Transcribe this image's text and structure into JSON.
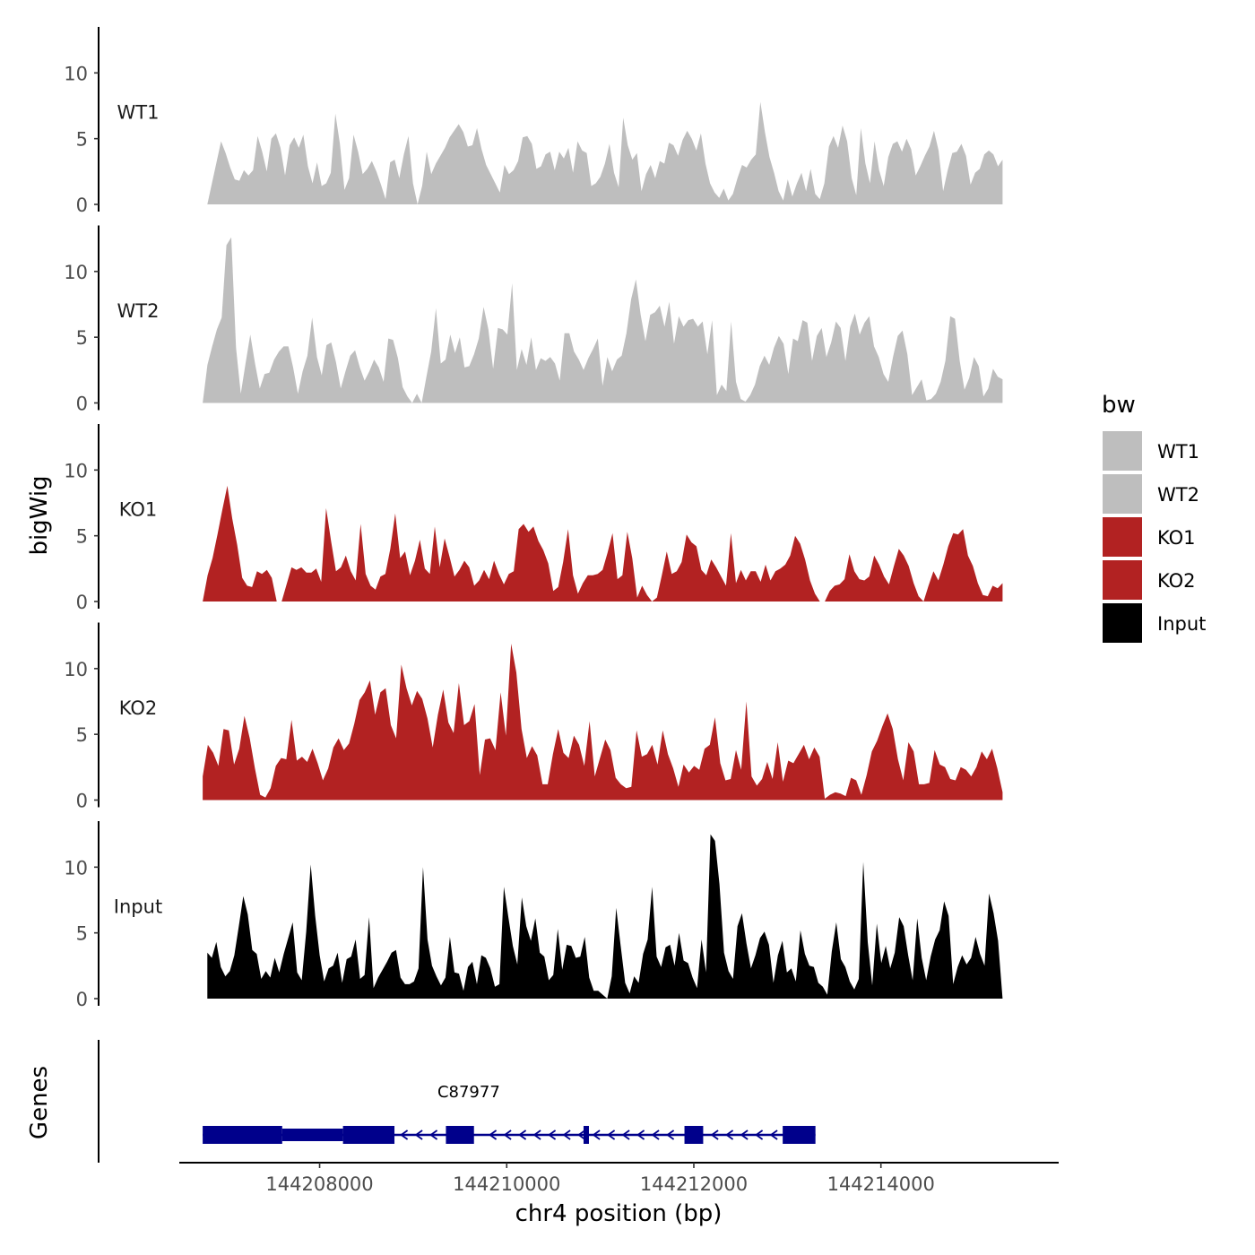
{
  "chart_data": {
    "type": "area",
    "ylabel": "bigWig",
    "genes_label": "Genes",
    "xlabel": "chr4 position (bp)",
    "xlim": [
      144206500,
      144215900
    ],
    "ylim": [
      0,
      13.5
    ],
    "y_ticks": [
      0,
      5,
      10
    ],
    "x_ticks": [
      144208000,
      144210000,
      144212000,
      144214000
    ],
    "x_tick_labels": [
      "144208000",
      "144210000",
      "144212000",
      "144214000"
    ],
    "legend": {
      "title": "bw",
      "position": "right",
      "entries": [
        {
          "label": "WT1",
          "color": "#bebebe"
        },
        {
          "label": "WT2",
          "color": "#bebebe"
        },
        {
          "label": "KO1",
          "color": "#b22222"
        },
        {
          "label": "KO2",
          "color": "#b22222"
        },
        {
          "label": "Input",
          "color": "#000000"
        }
      ]
    },
    "tracks": [
      {
        "name": "WT1",
        "color": "#bebebe",
        "x_start": 144206800,
        "x_end": 144215300,
        "values": [
          0,
          1.6,
          3.2,
          4.8,
          3.9,
          2.8,
          1.9,
          1.8,
          2.6,
          2.2,
          2.6,
          5.2,
          4.0,
          2.5,
          5.0,
          5.4,
          4.3,
          2.2,
          4.5,
          5.1,
          4.3,
          5.3,
          2.9,
          1.6,
          3.2,
          1.4,
          1.6,
          2.4,
          6.9,
          4.6,
          1.1,
          2.0,
          5.3,
          4.0,
          2.3,
          2.7,
          3.3,
          2.5,
          1.5,
          0.4,
          3.2,
          3.4,
          2.0,
          3.8,
          5.2,
          1.6,
          0,
          1.4,
          4.0,
          2.3,
          3.1,
          3.7,
          4.3,
          5.1,
          5.6,
          6.1,
          5.5,
          4.4,
          4.5,
          5.8,
          4.2,
          3.0,
          2.3,
          1.6,
          0.9,
          3.0,
          2.3,
          2.6,
          3.3,
          5.1,
          5.2,
          4.6,
          2.7,
          2.9,
          3.8,
          4.0,
          2.6,
          4.0,
          3.5,
          4.3,
          2.4,
          4.8,
          4.1,
          3.9,
          1.4,
          1.6,
          2.1,
          3.1,
          4.6,
          2.4,
          1.3,
          6.6,
          4.5,
          3.4,
          3.9,
          1.0,
          2.3,
          3.0,
          2.0,
          3.3,
          3.1,
          4.7,
          4.5,
          3.7,
          4.9,
          5.6,
          5.0,
          4.1,
          5.4,
          3.1,
          1.6,
          0.9,
          0.5,
          1.2,
          0.3,
          0.8,
          2.0,
          3.0,
          2.8,
          3.4,
          3.8,
          7.8,
          5.5,
          3.6,
          2.4,
          1.0,
          0.3,
          1.9,
          0.6,
          1.6,
          2.4,
          1.0,
          2.7,
          0.8,
          0.4,
          1.6,
          4.4,
          5.2,
          4.3,
          6.0,
          4.8,
          2.0,
          0.7,
          5.8,
          3.1,
          1.6,
          4.8,
          2.6,
          1.4,
          3.6,
          4.6,
          4.8,
          4.0,
          5.0,
          4.2,
          2.2,
          2.9,
          3.7,
          4.4,
          5.6,
          4.1,
          1.0,
          2.6,
          3.9,
          4.0,
          4.6,
          3.7,
          1.5,
          2.4,
          2.7,
          3.8,
          4.1,
          3.8,
          2.9,
          3.4
        ]
      },
      {
        "name": "WT2",
        "color": "#bebebe",
        "x_start": 144206750,
        "x_end": 144215300,
        "values": [
          0,
          2.9,
          4.3,
          5.6,
          6.5,
          12.0,
          12.6,
          4.2,
          0.7,
          3.0,
          5.2,
          3.0,
          1.1,
          2.2,
          2.3,
          3.3,
          3.9,
          4.3,
          4.3,
          2.7,
          0.7,
          2.4,
          3.6,
          6.5,
          3.5,
          2.1,
          4.4,
          4.6,
          3.1,
          1.1,
          2.4,
          3.6,
          4.0,
          2.7,
          1.7,
          2.4,
          3.3,
          2.7,
          1.6,
          4.9,
          4.8,
          3.4,
          1.2,
          0.5,
          0,
          0.7,
          0,
          2.0,
          3.9,
          7.2,
          3.0,
          3.3,
          5.2,
          3.8,
          5.0,
          2.7,
          2.8,
          3.7,
          4.9,
          7.3,
          5.6,
          2.6,
          5.7,
          5.6,
          5.2,
          9.1,
          2.5,
          4.1,
          2.9,
          5.0,
          2.5,
          3.4,
          3.2,
          3.5,
          3.0,
          1.7,
          5.3,
          5.3,
          3.9,
          3.3,
          2.5,
          3.4,
          4.1,
          4.9,
          1.3,
          3.5,
          2.4,
          3.3,
          3.6,
          5.3,
          7.9,
          9.4,
          6.7,
          4.7,
          6.7,
          6.9,
          7.4,
          5.8,
          7.7,
          4.5,
          6.6,
          5.8,
          6.3,
          6.4,
          5.8,
          6.2,
          3.7,
          6.3,
          0.6,
          1.4,
          0.9,
          6.2,
          1.6,
          0.3,
          0.1,
          0.6,
          1.4,
          2.8,
          3.6,
          2.9,
          4.2,
          5.1,
          4.5,
          2.2,
          4.9,
          4.7,
          6.3,
          6.1,
          3.2,
          5.1,
          5.7,
          3.5,
          4.6,
          6.2,
          5.7,
          3.2,
          5.8,
          6.8,
          5.2,
          6.1,
          6.6,
          4.3,
          3.5,
          2.2,
          1.6,
          3.5,
          5.1,
          5.5,
          3.7,
          0.6,
          1.2,
          1.8,
          0.2,
          0.3,
          0.7,
          1.6,
          3.2,
          6.6,
          6.4,
          3.2,
          1.0,
          1.9,
          3.5,
          2.8,
          0.5,
          1.1,
          2.6,
          2.0,
          1.8
        ]
      },
      {
        "name": "KO1",
        "color": "#b22222",
        "x_start": 144206750,
        "x_end": 144215300,
        "values": [
          0,
          2.0,
          3.3,
          5.1,
          7.0,
          8.8,
          6.3,
          4.3,
          1.8,
          1.2,
          1.1,
          2.3,
          2.1,
          2.4,
          1.8,
          0,
          0,
          1.3,
          2.6,
          2.4,
          2.6,
          2.2,
          2.2,
          2.5,
          1.5,
          7.1,
          4.6,
          2.3,
          2.6,
          3.5,
          2.3,
          1.6,
          5.9,
          2.1,
          1.2,
          0.9,
          1.9,
          2.1,
          4.0,
          6.7,
          3.3,
          3.8,
          2.0,
          3.1,
          4.7,
          2.5,
          2.1,
          5.7,
          2.6,
          4.8,
          3.4,
          1.9,
          2.4,
          3.1,
          2.6,
          1.2,
          1.6,
          2.4,
          1.7,
          3.1,
          2.1,
          1.3,
          2.1,
          2.3,
          5.5,
          5.9,
          5.3,
          5.7,
          4.6,
          3.9,
          2.9,
          0.8,
          1.1,
          3.0,
          5.5,
          2.0,
          0.6,
          1.4,
          2.0,
          2.0,
          2.1,
          2.4,
          3.7,
          5.2,
          1.7,
          2.0,
          5.3,
          3.3,
          0.3,
          1.2,
          0.5,
          0,
          0.3,
          2.0,
          3.8,
          2.1,
          2.3,
          3.0,
          5.1,
          4.5,
          4.2,
          2.4,
          2.0,
          3.2,
          2.6,
          1.9,
          1.2,
          5.2,
          1.4,
          2.4,
          1.6,
          2.3,
          2.3,
          1.5,
          2.8,
          1.6,
          2.3,
          2.5,
          2.8,
          3.5,
          5.0,
          4.4,
          3.2,
          1.6,
          0.6,
          0,
          0,
          0.8,
          1.2,
          1.3,
          1.7,
          3.6,
          2.3,
          1.7,
          1.6,
          1.9,
          3.5,
          2.8,
          1.9,
          1.3,
          2.7,
          4.0,
          3.5,
          2.7,
          1.4,
          0.4,
          0,
          1.2,
          2.3,
          1.6,
          2.8,
          4.2,
          5.2,
          5.1,
          5.5,
          3.5,
          2.7,
          1.4,
          0.5,
          0.4,
          1.2,
          1.0,
          1.4
        ]
      },
      {
        "name": "KO2",
        "color": "#b22222",
        "x_start": 144206750,
        "x_end": 144215300,
        "values": [
          1.8,
          4.2,
          3.6,
          2.6,
          5.4,
          5.3,
          2.7,
          3.9,
          6.4,
          4.7,
          2.4,
          0.4,
          0.2,
          0.9,
          2.6,
          3.2,
          3.1,
          6.1,
          3.0,
          3.3,
          2.9,
          3.9,
          2.8,
          1.5,
          2.4,
          4.0,
          4.7,
          3.8,
          4.3,
          5.8,
          7.6,
          8.2,
          9.1,
          6.5,
          8.2,
          8.5,
          5.7,
          4.7,
          10.3,
          8.5,
          7.2,
          8.3,
          7.7,
          6.2,
          4.0,
          6.5,
          8.4,
          5.9,
          5.1,
          8.9,
          5.7,
          6.0,
          7.3,
          1.9,
          4.6,
          4.7,
          3.8,
          8.2,
          4.9,
          11.9,
          9.7,
          5.4,
          3.2,
          4.1,
          3.4,
          1.2,
          1.2,
          3.5,
          5.4,
          3.6,
          3.2,
          4.9,
          4.2,
          2.6,
          6.0,
          1.8,
          3.2,
          4.6,
          3.8,
          1.7,
          1.2,
          0.9,
          1.0,
          5.3,
          3.3,
          3.5,
          4.2,
          2.7,
          5.3,
          3.5,
          2.4,
          1.0,
          2.7,
          2.1,
          2.6,
          2.3,
          3.9,
          4.2,
          6.3,
          2.8,
          1.5,
          1.6,
          3.8,
          2.3,
          7.5,
          1.8,
          1.1,
          1.6,
          2.9,
          1.6,
          4.4,
          1.4,
          3.0,
          2.8,
          3.5,
          4.2,
          3.1,
          4.0,
          3.3,
          0.1,
          0.4,
          0.6,
          0.5,
          0.3,
          1.7,
          1.5,
          0.4,
          1.9,
          3.7,
          4.5,
          5.6,
          6.6,
          5.4,
          3.1,
          1.5,
          4.4,
          3.7,
          1.2,
          1.2,
          1.3,
          3.8,
          2.7,
          2.5,
          1.6,
          1.5,
          2.5,
          2.3,
          1.8,
          2.5,
          3.7,
          3.1,
          3.9,
          2.4,
          0.6
        ]
      },
      {
        "name": "Input",
        "color": "#000000",
        "x_start": 144206800,
        "x_end": 144215300,
        "values": [
          3.5,
          3.1,
          4.3,
          2.4,
          1.7,
          2.1,
          3.3,
          5.5,
          7.8,
          6.4,
          3.7,
          3.4,
          1.5,
          2.1,
          1.6,
          3.1,
          2.0,
          3.4,
          4.6,
          5.8,
          2.0,
          1.4,
          5.1,
          10.2,
          6.3,
          3.3,
          1.3,
          2.3,
          2.5,
          3.5,
          1.2,
          3.0,
          3.2,
          4.5,
          1.5,
          1.8,
          6.2,
          0.8,
          1.6,
          2.2,
          2.8,
          3.5,
          3.7,
          1.6,
          1.1,
          1.1,
          1.3,
          2.3,
          10.0,
          4.5,
          2.5,
          1.7,
          1.0,
          1.6,
          4.7,
          2.0,
          1.9,
          0.6,
          2.4,
          2.8,
          1.1,
          3.3,
          3.1,
          2.3,
          0.9,
          1.1,
          8.5,
          6.2,
          4.0,
          2.6,
          7.7,
          5.5,
          4.4,
          6.1,
          3.5,
          3.2,
          1.4,
          1.8,
          5.3,
          2.2,
          4.1,
          4.0,
          3.1,
          3.2,
          4.7,
          1.6,
          0.6,
          0.6,
          0.3,
          0,
          1.7,
          6.9,
          4.0,
          1.2,
          0.4,
          1.7,
          1.2,
          3.4,
          4.5,
          8.5,
          3.2,
          2.4,
          3.9,
          4.1,
          2.5,
          5.0,
          2.9,
          2.7,
          1.6,
          0.8,
          4.5,
          2.0,
          12.5,
          12.0,
          8.7,
          3.5,
          2.1,
          1.5,
          5.5,
          6.5,
          4.2,
          2.3,
          3.3,
          4.6,
          5.1,
          4.1,
          1.2,
          3.3,
          4.4,
          2.0,
          2.3,
          1.3,
          5.2,
          3.4,
          2.5,
          2.4,
          1.2,
          0.9,
          0.3,
          3.6,
          5.8,
          3.0,
          2.4,
          1.3,
          0.7,
          1.5,
          10.4,
          4.3,
          1.0,
          5.7,
          2.7,
          4.0,
          2.3,
          3.5,
          6.2,
          5.5,
          3.3,
          1.4,
          6.1,
          3.1,
          1.4,
          3.2,
          4.5,
          5.2,
          7.4,
          6.3,
          1.1,
          2.4,
          3.3,
          2.6,
          3.1,
          4.7,
          3.4,
          2.5,
          8.0,
          6.5,
          4.4,
          0
        ]
      }
    ],
    "genes": [
      {
        "name": "C87977",
        "strand": "-",
        "start": 144206750,
        "end": 144213300,
        "color": "#00008b",
        "thick_blocks": [
          [
            144206750,
            144207600
          ],
          [
            144208250,
            144208800
          ],
          [
            144209350,
            144209650
          ],
          [
            144211900,
            144212100
          ],
          [
            144212950,
            144213300
          ]
        ],
        "thin_blocks": [
          [
            144207600,
            144208250
          ]
        ],
        "small_exons": [
          144210850
        ]
      }
    ]
  }
}
